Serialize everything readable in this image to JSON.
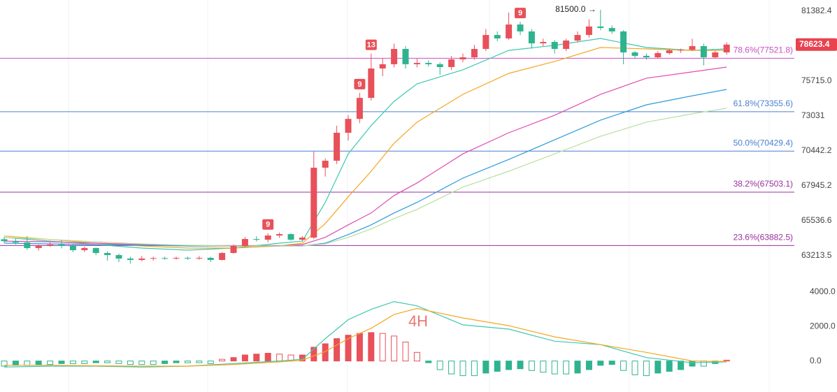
{
  "chart_data": [
    {
      "type": "candlestick",
      "log": true,
      "ylim": [
        61680,
        82330
      ],
      "yticks": [
        81382.4,
        {
          "value": 75715,
          "label": "75715.0"
        },
        73031,
        70442.2,
        67945.2,
        65536.6,
        63213.5
      ],
      "up_color": "#e8515a",
      "down_color": "#2fb38f",
      "open": [
        64300,
        64176,
        64085,
        63716,
        63853,
        63945,
        63853,
        63577,
        63716,
        63393,
        63256,
        63030,
        62939,
        63030,
        63060,
        63030,
        63075,
        63030,
        63075,
        62939,
        63393,
        63853,
        64316,
        64270,
        64548,
        64642,
        64270,
        64409,
        69232,
        69733,
        71777,
        72814,
        74410,
        76707,
        77044,
        78271,
        77044,
        77150,
        77044,
        76820,
        77430,
        77597,
        78271,
        79407,
        79125,
        80272,
        79697,
        78724,
        78838,
        78271,
        78952,
        79407,
        80107,
        79983,
        79697,
        77990,
        77714,
        77597,
        77935,
        78157,
        78200,
        78500,
        77597,
        77990
      ],
      "high": [
        64450,
        64350,
        64500,
        63950,
        64100,
        64250,
        63950,
        63800,
        63750,
        63500,
        63350,
        63150,
        63200,
        63150,
        63150,
        63150,
        63150,
        63200,
        63150,
        63450,
        63950,
        64450,
        64500,
        64700,
        64750,
        64700,
        64500,
        70400,
        69900,
        72300,
        73100,
        74800,
        77900,
        77500,
        78700,
        78500,
        77500,
        77350,
        77200,
        77700,
        77900,
        78600,
        79900,
        79700,
        81270,
        80500,
        79900,
        79100,
        79000,
        79100,
        79700,
        80700,
        81500,
        80200,
        79800,
        78100,
        77900,
        78100,
        78300,
        78300,
        79100,
        78700,
        78100,
        78800
      ],
      "low": [
        64050,
        63950,
        63600,
        63550,
        63800,
        63700,
        63450,
        63450,
        63250,
        62900,
        62800,
        62700,
        62850,
        62900,
        62950,
        62950,
        62950,
        62950,
        62800,
        62900,
        63350,
        63800,
        64150,
        64100,
        64400,
        64200,
        64200,
        64300,
        68600,
        69500,
        71200,
        72500,
        74200,
        76100,
        76800,
        76700,
        76800,
        76850,
        76200,
        76600,
        77200,
        77400,
        78100,
        78900,
        79000,
        79400,
        78300,
        78500,
        77900,
        78100,
        78800,
        79200,
        79800,
        79500,
        77044,
        77500,
        77400,
        77500,
        77800,
        77950,
        78100,
        76950,
        77500,
        77800
      ],
      "close": [
        64176,
        64085,
        63716,
        63853,
        63945,
        63853,
        63577,
        63716,
        63393,
        63256,
        63030,
        62939,
        63030,
        63060,
        63030,
        63075,
        63030,
        63075,
        62939,
        63393,
        63853,
        64316,
        64270,
        64548,
        64642,
        64270,
        64409,
        69232,
        69733,
        71777,
        72814,
        74410,
        76707,
        77044,
        78271,
        77044,
        77150,
        77044,
        76820,
        77430,
        77597,
        78271,
        79407,
        79125,
        80272,
        79697,
        78724,
        78838,
        78271,
        78952,
        79407,
        80107,
        79983,
        79697,
        77990,
        77714,
        77597,
        77935,
        78157,
        78200,
        78500,
        77597,
        77990,
        78623.4
      ],
      "ma_x": [
        0,
        4,
        8,
        12,
        16,
        20,
        24,
        26,
        28,
        30,
        32,
        34,
        36,
        40,
        44,
        48,
        52,
        56,
        60,
        63
      ],
      "series": [
        {
          "color": "#3fc8b0",
          "values": [
            64425,
            64176,
            63945,
            63716,
            63577,
            63716,
            64040,
            64176,
            66796,
            70230,
            72306,
            74145,
            75497,
            76600,
            78157,
            78560,
            79127,
            78387,
            78157,
            78271
          ]
        },
        {
          "color": "#f5a623",
          "values": [
            64517,
            64284,
            64040,
            63853,
            63716,
            63716,
            63853,
            64040,
            65354,
            67178,
            68984,
            71001,
            72567,
            74680,
            76320,
            77266,
            78387,
            78271,
            78157,
            78157
          ]
        },
        {
          "color": "#e04caf",
          "values": [
            64176,
            64131,
            64040,
            63945,
            63853,
            63853,
            63853,
            63945,
            64425,
            65261,
            66070,
            67272,
            68152,
            70230,
            71777,
            73090,
            74680,
            75939,
            76434,
            76820
          ]
        },
        {
          "color": "#2d9cdb",
          "values": [
            64040,
            63994,
            63945,
            63903,
            63853,
            63853,
            63853,
            63853,
            64040,
            64613,
            65261,
            66070,
            66796,
            68490,
            69824,
            71257,
            72723,
            73881,
            74574,
            75061
          ]
        },
        {
          "color": "#b8dfa0",
          "values": [
            64425,
            64284,
            64131,
            63994,
            63903,
            63853,
            63853,
            63853,
            63994,
            64425,
            64983,
            65690,
            66311,
            67856,
            68984,
            70230,
            71514,
            72567,
            73193,
            73620
          ]
        }
      ],
      "levels": [
        {
          "value": 77521.8,
          "label": "78.6%(77521.8)",
          "color": "#c84fc4"
        },
        {
          "value": 73355.6,
          "label": "61.8%(73355.6)",
          "color": "#4a7fd0"
        },
        {
          "value": 70429.4,
          "label": "50.0%(70429.4)",
          "color": "#4a7fd0"
        },
        {
          "value": 67503.1,
          "label": "38.2%(67503.1)",
          "color": "#9a2fa0"
        },
        {
          "value": 63882.5,
          "label": "23.6%(63882.5)",
          "color": "#9a2fa0"
        }
      ],
      "last_price": 78623.4,
      "high_marker": {
        "value": 81500,
        "label": "81500.0 →"
      },
      "td_labels": [
        {
          "text": 9,
          "candle": 23
        },
        {
          "text": 9,
          "candle": 31
        },
        {
          "text": 13,
          "candle": 32
        },
        {
          "text": 9,
          "candle": 45
        }
      ]
    },
    {
      "type": "macd",
      "ylim": [
        -1150,
        4730
      ],
      "yticks": [
        {
          "value": 4000,
          "label": "4000.0"
        },
        {
          "value": 2000,
          "label": "2000.0"
        },
        {
          "value": 0,
          "label": "0.0"
        }
      ],
      "watermark": "4H",
      "up_color": "#e8515a",
      "down_color": "#2fb38f",
      "histogram": [
        -300,
        -250,
        -250,
        -200,
        -200,
        -150,
        -150,
        -150,
        -100,
        -100,
        -150,
        -200,
        -200,
        -200,
        -150,
        -100,
        -100,
        -100,
        -150,
        100,
        200,
        350,
        400,
        450,
        400,
        350,
        350,
        800,
        1000,
        1300,
        1500,
        1600,
        1650,
        1600,
        1450,
        1100,
        500,
        -100,
        -500,
        -750,
        -850,
        -850,
        -700,
        -600,
        -500,
        -450,
        -550,
        -650,
        -750,
        -750,
        -700,
        -500,
        -250,
        -200,
        -550,
        -800,
        -850,
        -700,
        -600,
        -500,
        -300,
        -300,
        -150,
        50
      ],
      "x": [
        0,
        4,
        8,
        12,
        16,
        20,
        24,
        26,
        28,
        30,
        32,
        34,
        36,
        40,
        44,
        48,
        52,
        56,
        60,
        63
      ],
      "series": [
        {
          "color": "#3fc8b0",
          "values": [
            -350,
            -300,
            -300,
            -350,
            -300,
            -150,
            0,
            100,
            1300,
            2400,
            3000,
            3450,
            3200,
            2100,
            1850,
            1150,
            950,
            200,
            -100,
            -50
          ]
        },
        {
          "color": "#f5a623",
          "values": [
            -250,
            -250,
            -280,
            -300,
            -300,
            -200,
            -50,
            50,
            550,
            1300,
            1900,
            2700,
            3050,
            2500,
            2050,
            1400,
            950,
            500,
            0,
            -30
          ]
        }
      ]
    }
  ]
}
